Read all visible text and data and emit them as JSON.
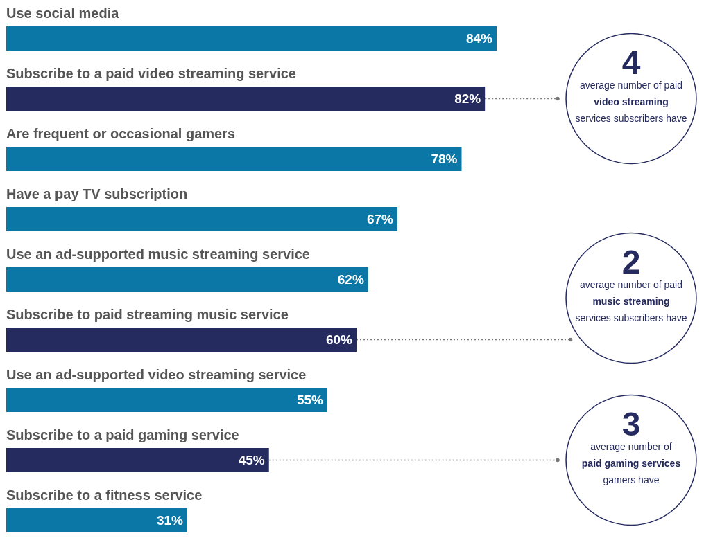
{
  "chart_data": {
    "type": "bar",
    "orientation": "horizontal",
    "categories": [
      "Use social media",
      "Subscribe to a paid video streaming service",
      "Are frequent or occasional gamers",
      "Have a pay TV subscription",
      "Use an ad-supported music streaming service",
      "Subscribe to paid streaming music service",
      "Use an ad-supported video streaming service",
      "Subscribe to a paid gaming service",
      "Subscribe to a fitness service"
    ],
    "values": [
      84,
      82,
      78,
      67,
      62,
      60,
      55,
      45,
      31
    ],
    "colors": [
      "#0b77a6",
      "#262b5f",
      "#0b77a6",
      "#0b77a6",
      "#0b77a6",
      "#262b5f",
      "#0b77a6",
      "#262b5f",
      "#0b77a6"
    ],
    "value_labels": [
      "84%",
      "82%",
      "78%",
      "67%",
      "62%",
      "60%",
      "55%",
      "45%",
      "31%"
    ],
    "annotations": [
      "4\naverage number of paid\nvideo streaming\nservices subscribers have",
      "2\naverage number of paid\nmusic streaming\nservices subscribers have",
      "3\naverage number of\npaid gaming services\ngamers have"
    ]
  }
}
